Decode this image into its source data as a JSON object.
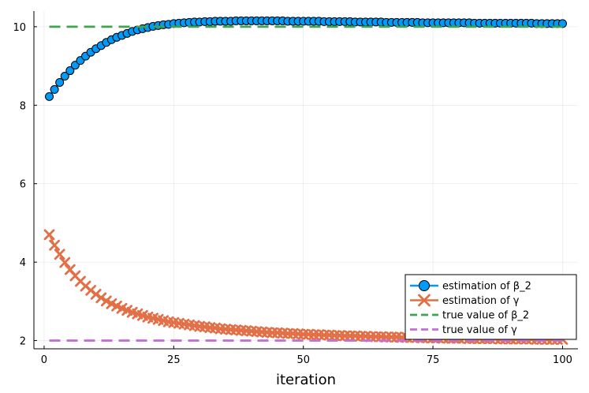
{
  "chart_data": {
    "type": "line",
    "title": "",
    "xlabel": "iteration",
    "ylabel": "",
    "xlim": [
      -1.97,
      102.97
    ],
    "ylim": [
      1.79,
      10.4
    ],
    "xticks": [
      0,
      25,
      50,
      75,
      100
    ],
    "yticks": [
      2,
      4,
      6,
      8,
      10
    ],
    "grid": true,
    "legend_position": "bottom-right",
    "series": [
      {
        "name": "estimation of β_2",
        "style": "line+circle-marker",
        "color": "#009af9",
        "points": [
          [
            1,
            8.22
          ],
          [
            2,
            8.4
          ],
          [
            3,
            8.58
          ],
          [
            4,
            8.74
          ],
          [
            5,
            8.88
          ],
          [
            6,
            9.02
          ],
          [
            7,
            9.14
          ],
          [
            8,
            9.25
          ],
          [
            9,
            9.35
          ],
          [
            10,
            9.44
          ],
          [
            11,
            9.52
          ],
          [
            12,
            9.6
          ],
          [
            13,
            9.67
          ],
          [
            14,
            9.73
          ],
          [
            15,
            9.78
          ],
          [
            16,
            9.83
          ],
          [
            17,
            9.88
          ],
          [
            18,
            9.92
          ],
          [
            19,
            9.95
          ],
          [
            20,
            9.98
          ],
          [
            21,
            10.01
          ],
          [
            22,
            10.03
          ],
          [
            23,
            10.05
          ],
          [
            24,
            10.06
          ],
          [
            25,
            10.08
          ],
          [
            26,
            10.09
          ],
          [
            27,
            10.1
          ],
          [
            28,
            10.11
          ],
          [
            29,
            10.12
          ],
          [
            30,
            10.12
          ],
          [
            31,
            10.13
          ],
          [
            32,
            10.13
          ],
          [
            33,
            10.14
          ],
          [
            34,
            10.14
          ],
          [
            35,
            10.14
          ],
          [
            36,
            10.14
          ],
          [
            37,
            10.15
          ],
          [
            38,
            10.15
          ],
          [
            39,
            10.15
          ],
          [
            40,
            10.15
          ],
          [
            41,
            10.15
          ],
          [
            42,
            10.15
          ],
          [
            43,
            10.15
          ],
          [
            44,
            10.15
          ],
          [
            45,
            10.15
          ],
          [
            46,
            10.15
          ],
          [
            47,
            10.14
          ],
          [
            48,
            10.14
          ],
          [
            49,
            10.14
          ],
          [
            50,
            10.14
          ],
          [
            51,
            10.14
          ],
          [
            52,
            10.14
          ],
          [
            53,
            10.14
          ],
          [
            54,
            10.13
          ],
          [
            55,
            10.13
          ],
          [
            56,
            10.13
          ],
          [
            57,
            10.13
          ],
          [
            58,
            10.13
          ],
          [
            59,
            10.13
          ],
          [
            60,
            10.12
          ],
          [
            61,
            10.12
          ],
          [
            62,
            10.12
          ],
          [
            63,
            10.12
          ],
          [
            64,
            10.12
          ],
          [
            65,
            10.12
          ],
          [
            66,
            10.11
          ],
          [
            67,
            10.11
          ],
          [
            68,
            10.11
          ],
          [
            69,
            10.11
          ],
          [
            70,
            10.11
          ],
          [
            71,
            10.11
          ],
          [
            72,
            10.11
          ],
          [
            73,
            10.1
          ],
          [
            74,
            10.1
          ],
          [
            75,
            10.1
          ],
          [
            76,
            10.1
          ],
          [
            77,
            10.1
          ],
          [
            78,
            10.1
          ],
          [
            79,
            10.1
          ],
          [
            80,
            10.1
          ],
          [
            81,
            10.1
          ],
          [
            82,
            10.1
          ],
          [
            83,
            10.09
          ],
          [
            84,
            10.09
          ],
          [
            85,
            10.09
          ],
          [
            86,
            10.09
          ],
          [
            87,
            10.09
          ],
          [
            88,
            10.09
          ],
          [
            89,
            10.09
          ],
          [
            90,
            10.09
          ],
          [
            91,
            10.09
          ],
          [
            92,
            10.09
          ],
          [
            93,
            10.09
          ],
          [
            94,
            10.09
          ],
          [
            95,
            10.08
          ],
          [
            96,
            10.08
          ],
          [
            97,
            10.08
          ],
          [
            98,
            10.08
          ],
          [
            99,
            10.08
          ],
          [
            100,
            10.08
          ]
        ]
      },
      {
        "name": "estimation of γ",
        "style": "line+x-marker",
        "color": "#e26f46",
        "points": [
          [
            1,
            4.7
          ],
          [
            2,
            4.43
          ],
          [
            3,
            4.2
          ],
          [
            4,
            3.99
          ],
          [
            5,
            3.81
          ],
          [
            6,
            3.65
          ],
          [
            7,
            3.51
          ],
          [
            8,
            3.39
          ],
          [
            9,
            3.28
          ],
          [
            10,
            3.18
          ],
          [
            11,
            3.09
          ],
          [
            12,
            3.01
          ],
          [
            13,
            2.94
          ],
          [
            14,
            2.88
          ],
          [
            15,
            2.82
          ],
          [
            16,
            2.77
          ],
          [
            17,
            2.72
          ],
          [
            18,
            2.68
          ],
          [
            19,
            2.64
          ],
          [
            20,
            2.6
          ],
          [
            21,
            2.57
          ],
          [
            22,
            2.54
          ],
          [
            23,
            2.51
          ],
          [
            24,
            2.48
          ],
          [
            25,
            2.46
          ],
          [
            26,
            2.44
          ],
          [
            27,
            2.42
          ],
          [
            28,
            2.4
          ],
          [
            29,
            2.38
          ],
          [
            30,
            2.36
          ],
          [
            31,
            2.35
          ],
          [
            32,
            2.33
          ],
          [
            33,
            2.32
          ],
          [
            34,
            2.3
          ],
          [
            35,
            2.29
          ],
          [
            36,
            2.28
          ],
          [
            37,
            2.27
          ],
          [
            38,
            2.26
          ],
          [
            39,
            2.25
          ],
          [
            40,
            2.24
          ],
          [
            41,
            2.23
          ],
          [
            42,
            2.22
          ],
          [
            43,
            2.21
          ],
          [
            44,
            2.2
          ],
          [
            45,
            2.2
          ],
          [
            46,
            2.19
          ],
          [
            47,
            2.18
          ],
          [
            48,
            2.18
          ],
          [
            49,
            2.17
          ],
          [
            50,
            2.16
          ],
          [
            51,
            2.16
          ],
          [
            52,
            2.15
          ],
          [
            53,
            2.15
          ],
          [
            54,
            2.14
          ],
          [
            55,
            2.14
          ],
          [
            56,
            2.13
          ],
          [
            57,
            2.13
          ],
          [
            58,
            2.12
          ],
          [
            59,
            2.12
          ],
          [
            60,
            2.12
          ],
          [
            61,
            2.11
          ],
          [
            62,
            2.11
          ],
          [
            63,
            2.1
          ],
          [
            64,
            2.1
          ],
          [
            65,
            2.1
          ],
          [
            66,
            2.09
          ],
          [
            67,
            2.09
          ],
          [
            68,
            2.09
          ],
          [
            69,
            2.08
          ],
          [
            70,
            2.08
          ],
          [
            71,
            2.08
          ],
          [
            72,
            2.08
          ],
          [
            73,
            2.07
          ],
          [
            74,
            2.07
          ],
          [
            75,
            2.07
          ],
          [
            76,
            2.07
          ],
          [
            77,
            2.06
          ],
          [
            78,
            2.06
          ],
          [
            79,
            2.06
          ],
          [
            80,
            2.06
          ],
          [
            81,
            2.06
          ],
          [
            82,
            2.05
          ],
          [
            83,
            2.05
          ],
          [
            84,
            2.05
          ],
          [
            85,
            2.05
          ],
          [
            86,
            2.05
          ],
          [
            87,
            2.05
          ],
          [
            88,
            2.04
          ],
          [
            89,
            2.04
          ],
          [
            90,
            2.04
          ],
          [
            91,
            2.04
          ],
          [
            92,
            2.04
          ],
          [
            93,
            2.04
          ],
          [
            94,
            2.04
          ],
          [
            95,
            2.03
          ],
          [
            96,
            2.03
          ],
          [
            97,
            2.03
          ],
          [
            98,
            2.03
          ],
          [
            99,
            2.03
          ],
          [
            100,
            2.03
          ]
        ]
      },
      {
        "name": "true value of β_2",
        "style": "dashed-line",
        "color": "#3ea44e",
        "points": [
          [
            1,
            10.0
          ],
          [
            100,
            10.0
          ]
        ]
      },
      {
        "name": "true value of γ",
        "style": "dashed-line",
        "color": "#c271d2",
        "points": [
          [
            1,
            2.0
          ],
          [
            100,
            2.0
          ]
        ]
      }
    ]
  }
}
